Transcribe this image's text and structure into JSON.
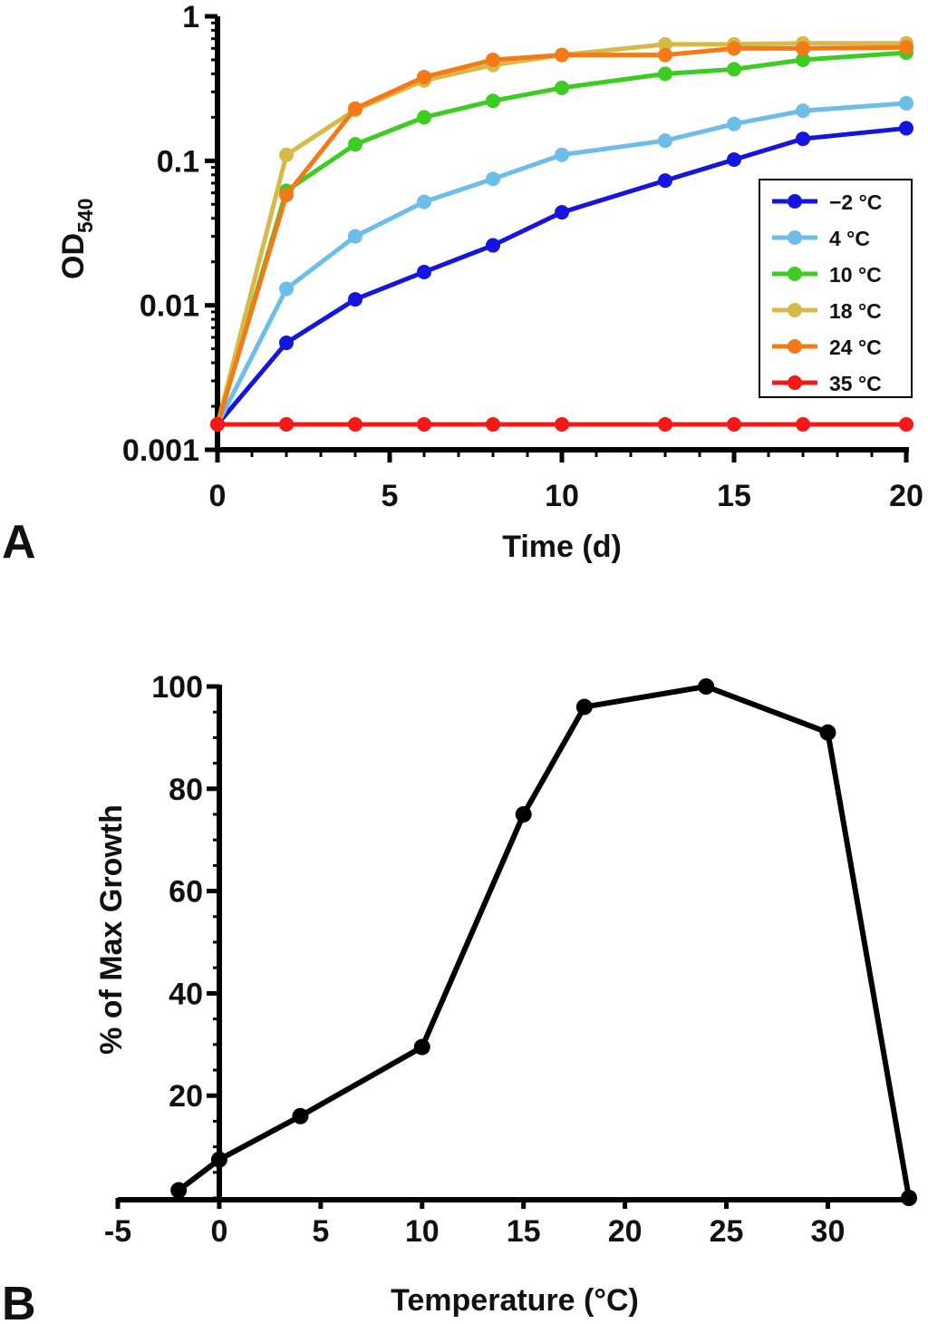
{
  "chart_data": [
    {
      "type": "line",
      "panel": "A",
      "xlabel": "Time (d)",
      "ylabel_main": "OD",
      "ylabel_sub": "540",
      "yscale": "log",
      "xlim": [
        0,
        20
      ],
      "ylim": [
        0.001,
        1
      ],
      "xticks": [
        0,
        5,
        10,
        15,
        20
      ],
      "yticks": [
        0.001,
        0.01,
        0.1,
        1
      ],
      "ytick_labels": [
        "0.001",
        "0.01",
        "0.1",
        "1"
      ],
      "legend_position": "right",
      "x": [
        0,
        2,
        4,
        6,
        8,
        10,
        13,
        15,
        17,
        20
      ],
      "series": [
        {
          "name": "−2 °C",
          "color": "#1515e0",
          "values": [
            0.0015,
            0.0055,
            0.011,
            0.017,
            0.026,
            0.044,
            0.073,
            0.102,
            0.142,
            0.168
          ]
        },
        {
          "name": " 4 °C",
          "color": "#6cbde8",
          "values": [
            0.0015,
            0.013,
            0.03,
            0.052,
            0.075,
            0.11,
            0.138,
            0.18,
            0.222,
            0.25
          ]
        },
        {
          "name": "10 °C",
          "color": "#3ccc22",
          "values": [
            0.0015,
            0.062,
            0.13,
            0.2,
            0.26,
            0.32,
            0.4,
            0.43,
            0.5,
            0.56
          ]
        },
        {
          "name": "18 °C",
          "color": "#d7b948",
          "values": [
            0.0015,
            0.11,
            0.225,
            0.36,
            0.46,
            0.54,
            0.64,
            0.64,
            0.65,
            0.65
          ]
        },
        {
          "name": "24 °C",
          "color": "#f47a18",
          "values": [
            0.0015,
            0.058,
            0.23,
            0.38,
            0.5,
            0.54,
            0.54,
            0.6,
            0.6,
            0.61
          ]
        },
        {
          "name": "35 °C",
          "color": "#f41818",
          "values": [
            0.0015,
            0.0015,
            0.0015,
            0.0015,
            0.0015,
            0.0015,
            0.0015,
            0.0015,
            0.0015,
            0.0015
          ]
        }
      ]
    },
    {
      "type": "line",
      "panel": "B",
      "xlabel": "Temperature (°C)",
      "ylabel": "% of Max Growth",
      "xlim": [
        -5,
        34
      ],
      "ylim": [
        0,
        100
      ],
      "xticks": [
        -5,
        0,
        5,
        10,
        15,
        20,
        25,
        30
      ],
      "yticks": [
        20,
        40,
        60,
        80,
        100
      ],
      "series": [
        {
          "name": "growth",
          "color": "#000000",
          "x": [
            -2,
            0,
            4,
            10,
            15,
            18,
            24,
            30,
            34
          ],
          "values": [
            1.5,
            7.5,
            16,
            29.5,
            75,
            96,
            100,
            91,
            0
          ]
        }
      ]
    }
  ]
}
